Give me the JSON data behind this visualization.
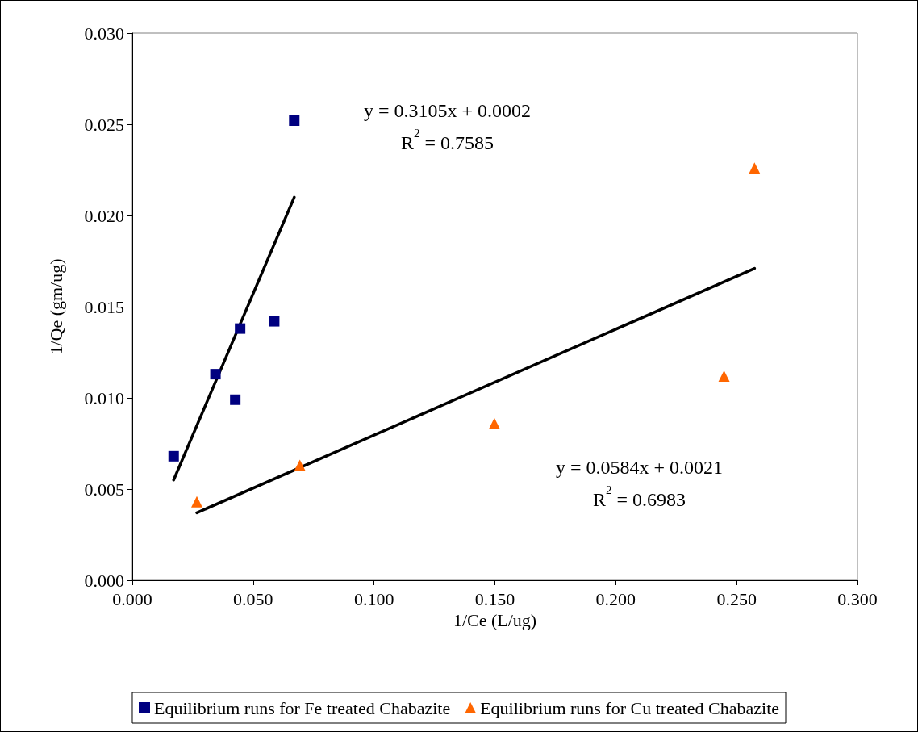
{
  "chart_data": {
    "type": "scatter",
    "xlabel": "1/Ce (L/ug)",
    "ylabel": "1/Qe (gm/ug)",
    "xlim": [
      0,
      0.3
    ],
    "ylim": [
      0,
      0.03
    ],
    "xticks": [
      {
        "value": 0,
        "label": "0.000"
      },
      {
        "value": 0.05,
        "label": "0.050"
      },
      {
        "value": 0.1,
        "label": "0.100"
      },
      {
        "value": 0.15,
        "label": "0.150"
      },
      {
        "value": 0.2,
        "label": "0.200"
      },
      {
        "value": 0.25,
        "label": "0.250"
      },
      {
        "value": 0.3,
        "label": "0.300"
      }
    ],
    "yticks": [
      {
        "value": 0,
        "label": "0.000"
      },
      {
        "value": 0.005,
        "label": "0.005"
      },
      {
        "value": 0.01,
        "label": "0.010"
      },
      {
        "value": 0.015,
        "label": "0.015"
      },
      {
        "value": 0.02,
        "label": "0.020"
      },
      {
        "value": 0.025,
        "label": "0.025"
      },
      {
        "value": 0.03,
        "label": "0.030"
      }
    ],
    "grid": false,
    "legend": "bottom",
    "series": [
      {
        "name": "Equilibrium runs for Fe treated Chabazite",
        "marker": "square",
        "color": "#000080",
        "x": [
          0.0171,
          0.0344,
          0.0426,
          0.0446,
          0.0587,
          0.067
        ],
        "values": [
          0.0068,
          0.0113,
          0.0099,
          0.0138,
          0.0142,
          0.0252
        ]
      },
      {
        "name": "Equilibrium runs for Cu treated Chabazite",
        "marker": "triangle",
        "color": "#ff6600",
        "x": [
          0.0267,
          0.0693,
          0.1498,
          0.2448,
          0.2574
        ],
        "values": [
          0.0043,
          0.0063,
          0.0086,
          0.0112,
          0.0226
        ]
      },
      {
        "type": "line",
        "color": "#000000",
        "marker": "none",
        "line_style": "solid",
        "x": [
          0.0171,
          0.067
        ],
        "values": [
          0.0055,
          0.021
        ]
      },
      {
        "type": "line",
        "color": "#000000",
        "marker": "none",
        "line_style": "solid",
        "x": [
          0.0267,
          0.2574
        ],
        "values": [
          0.0037,
          0.0171
        ]
      }
    ],
    "annotations": [
      "y = 0.3105x + 0.0002\nR$^{2}$ = 0.7585",
      "y = 0.0584x + 0.0021\nR$^{2}$ = 0.6983"
    ]
  }
}
